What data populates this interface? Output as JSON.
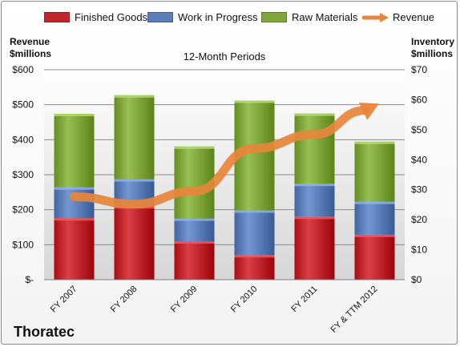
{
  "chart_data": {
    "type": "bar",
    "stacked": true,
    "title": "12-Month Periods",
    "company": "Thoratec",
    "left_axis_label": "Revenue\n$millions",
    "right_axis_label": "Inventory\n$millions",
    "categories": [
      "FY 2007",
      "FY 2008",
      "FY 2009",
      "FY 2010",
      "FY 2011",
      "FY & TTM 2012"
    ],
    "series": [
      {
        "name": "Finished Goods",
        "axis": "right",
        "color": "#c0262b",
        "values": [
          20.5,
          24.5,
          12.8,
          8.2,
          21.0,
          15.0
        ]
      },
      {
        "name": "Work in Progress",
        "axis": "right",
        "color": "#5b7db8",
        "values": [
          10.3,
          9.0,
          7.6,
          14.9,
          11.0,
          11.0
        ]
      },
      {
        "name": "Raw Materials",
        "axis": "right",
        "color": "#7ea63a",
        "values": [
          24.5,
          28.0,
          24.0,
          36.6,
          23.4,
          20.0
        ]
      }
    ],
    "line_series": {
      "name": "Revenue",
      "axis": "left",
      "color": "#e8853a",
      "values": [
        237,
        216,
        253,
        375,
        415,
        497
      ]
    },
    "left_axis": {
      "min": 0,
      "max": 600,
      "ticks": [
        "$-",
        "$100",
        "$200",
        "$300",
        "$400",
        "$500",
        "$600"
      ]
    },
    "right_axis": {
      "min": 0,
      "max": 70,
      "ticks": [
        "$0",
        "$10",
        "$20",
        "$30",
        "$40",
        "$50",
        "$60",
        "$70"
      ]
    },
    "grid": true,
    "legend_position": "top"
  }
}
